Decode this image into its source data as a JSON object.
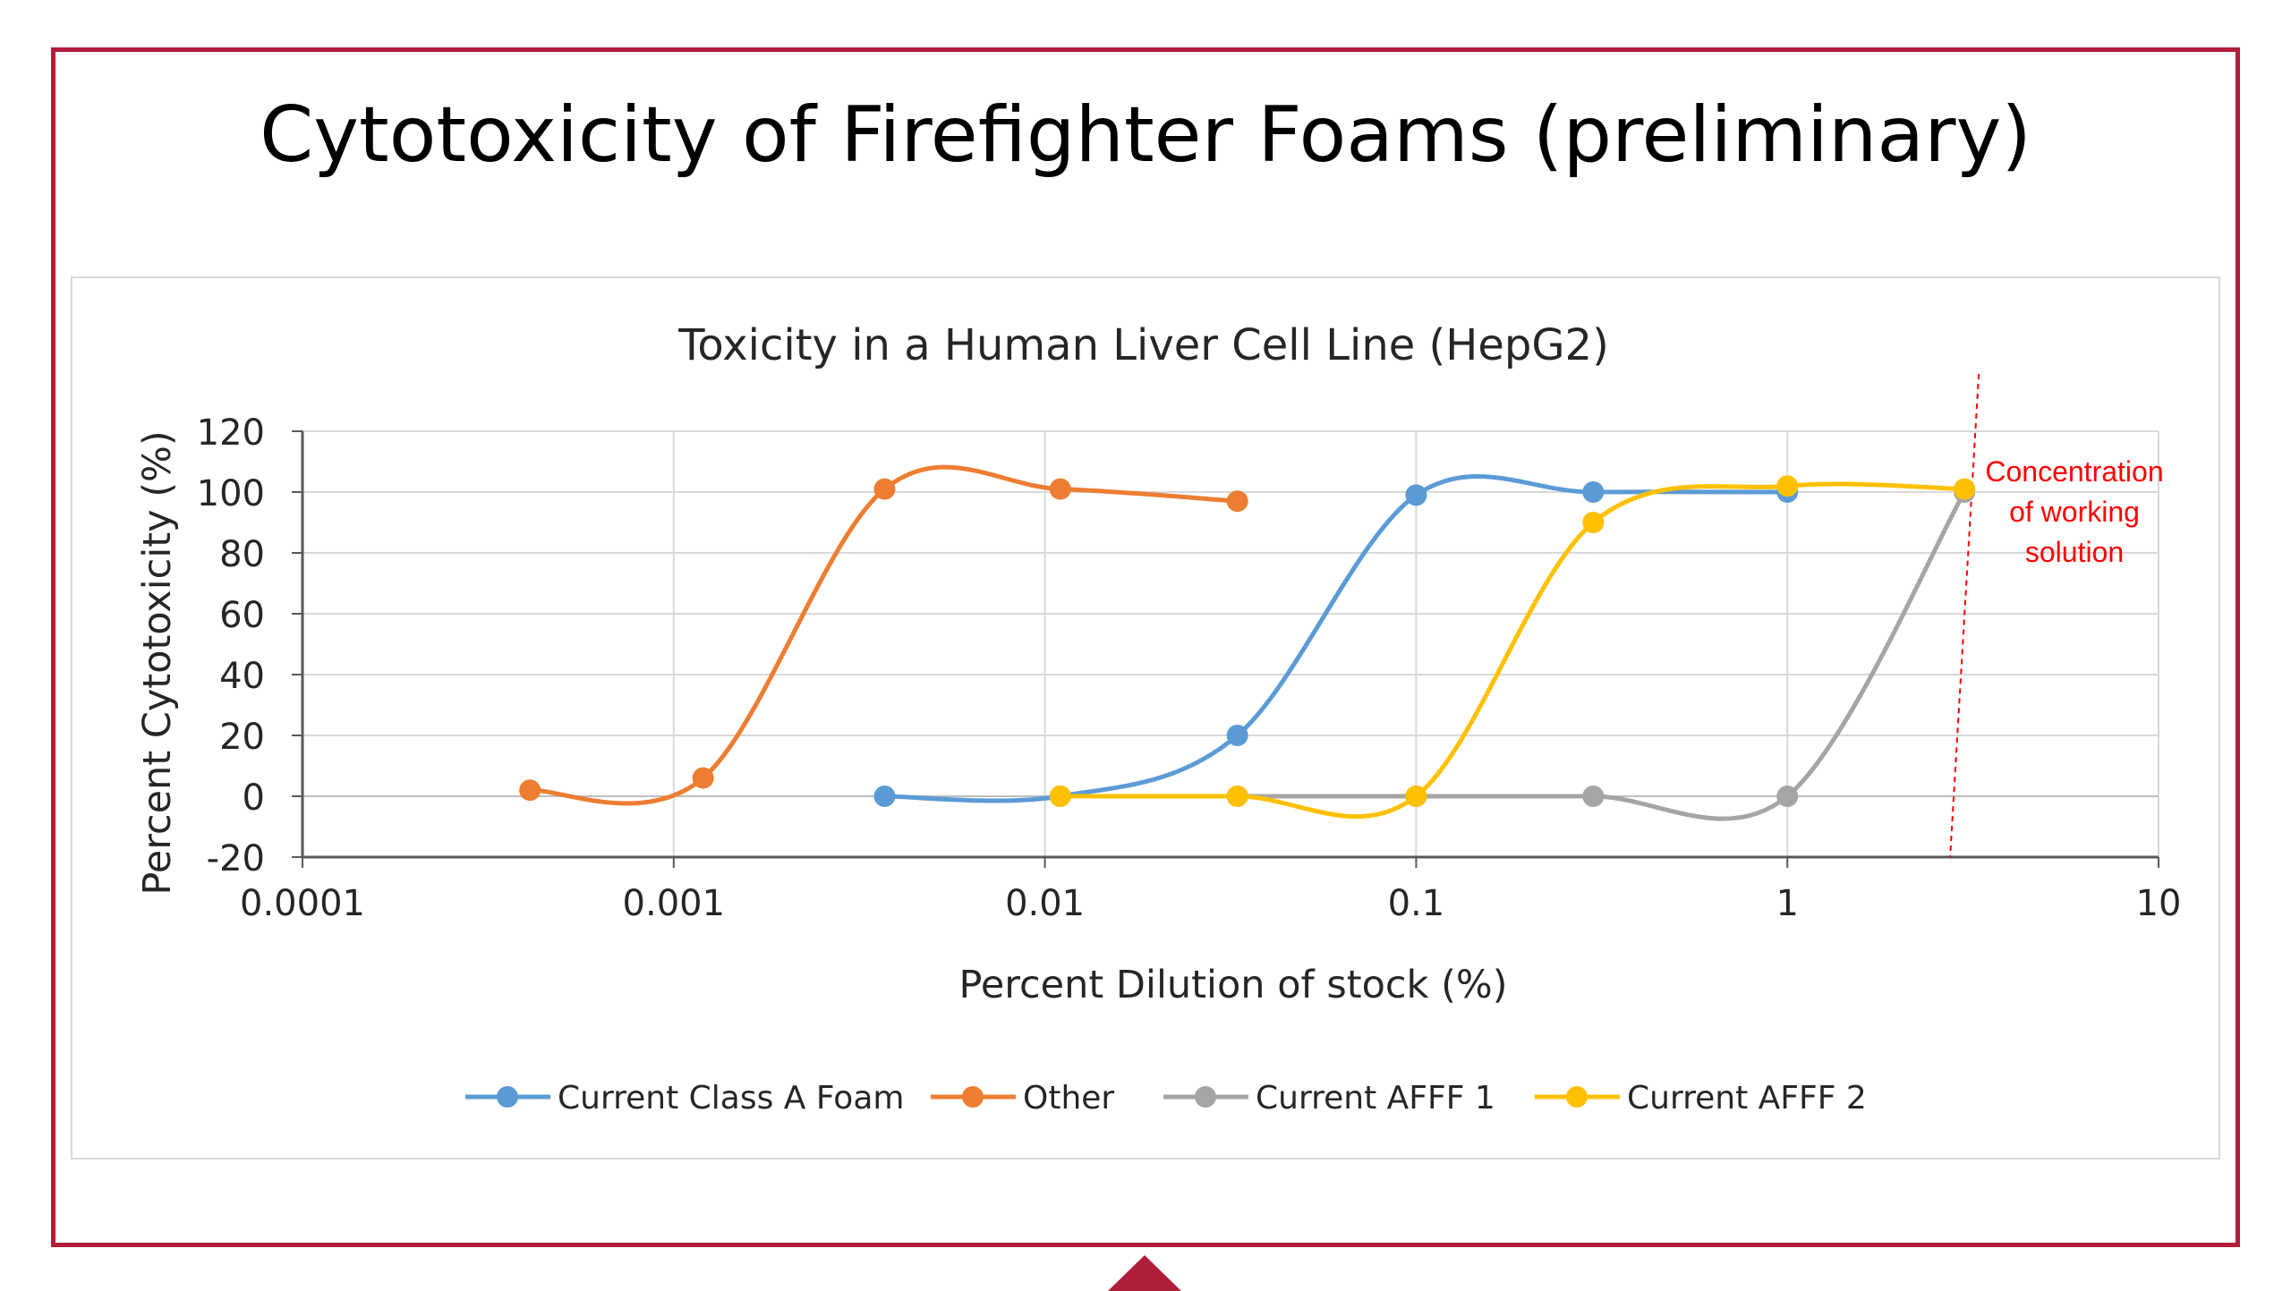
{
  "slide": {
    "title": "Cytotoxicity of Firefighter Foams (preliminary)",
    "accent_color": "#b01e3a"
  },
  "chart_data": {
    "type": "line",
    "title": "Toxicity in a Human Liver Cell Line (HepG2)",
    "xlabel": "Percent Dilution of stock (%)",
    "ylabel": "Percent Cytotoxicity (%)",
    "x_scale": "log",
    "xlim": [
      0.0001,
      10
    ],
    "ylim": [
      -20,
      120
    ],
    "x_tick_labels": [
      "0.0001",
      "0.001",
      "0.01",
      "0.1",
      "1",
      "10"
    ],
    "y_tick_labels": [
      "120",
      "100",
      "80",
      "60",
      "40",
      "20",
      "0",
      "-20"
    ],
    "grid": true,
    "legend_position": "bottom",
    "smoothed": true,
    "series": [
      {
        "name": "Current Class A Foam",
        "color": "#5b9bd5",
        "x": [
          0.0037,
          0.011,
          0.033,
          0.1,
          0.3,
          1
        ],
        "y": [
          0,
          0,
          20,
          99,
          100,
          100
        ]
      },
      {
        "name": "Other",
        "color": "#ed7d31",
        "x": [
          0.00041,
          0.0012,
          0.0037,
          0.011,
          0.033
        ],
        "y": [
          2,
          6,
          101,
          101,
          97
        ]
      },
      {
        "name": "Current AFFF 1",
        "color": "#a5a5a5",
        "x": [
          0.033,
          0.1,
          0.3,
          1,
          3
        ],
        "y": [
          0,
          0,
          0,
          0,
          100
        ]
      },
      {
        "name": "Current AFFF 2",
        "color": "#ffc000",
        "x": [
          0.011,
          0.033,
          0.1,
          0.3,
          1,
          3
        ],
        "y": [
          0,
          0,
          0,
          90,
          102,
          101
        ]
      }
    ],
    "annotation": {
      "lines": [
        "Concentration",
        "of working",
        "solution"
      ],
      "x": 3,
      "color": "#ff0000"
    }
  }
}
